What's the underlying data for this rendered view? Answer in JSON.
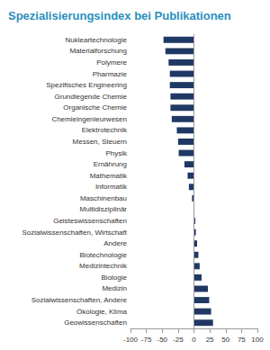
{
  "chart_data": {
    "type": "bar",
    "title": "Spezialisierungsindex bei Publikationen",
    "orientation": "horizontal",
    "categories": [
      "Nukleartechnologie",
      "Materialforschung",
      "Polymere",
      "Pharmazie",
      "Spezifisches Engineering",
      "Grundlegende Chemie",
      "Organische Chemie",
      "Chemieingenieurwesen",
      "Elektrotechnik",
      "Messen, Steuern",
      "Physik",
      "Ernährung",
      "Mathematik",
      "Informatik",
      "Maschinenbau",
      "Multidisziplinär",
      "Geisteswissenschaften",
      "Sozialwissenschaften, Wirtschaft",
      "Andere",
      "Biotechnologie",
      "Medizintechnik",
      "Biologie",
      "Medizin",
      "Sozialwissenschaften, Andere",
      "Ökologie, Klima",
      "Geowissenschaften"
    ],
    "values": [
      -48,
      -45,
      -40,
      -38,
      -38,
      -37,
      -37,
      -35,
      -27,
      -25,
      -24,
      -15,
      -10,
      -8,
      -3,
      0,
      2,
      3,
      5,
      7,
      9,
      12,
      22,
      24,
      27,
      30
    ],
    "color": "#1f3864",
    "xlim": [
      -100,
      100
    ],
    "xticks": [
      -100,
      -75,
      -50,
      -25,
      0,
      25,
      50,
      75,
      100
    ],
    "grid": false
  }
}
